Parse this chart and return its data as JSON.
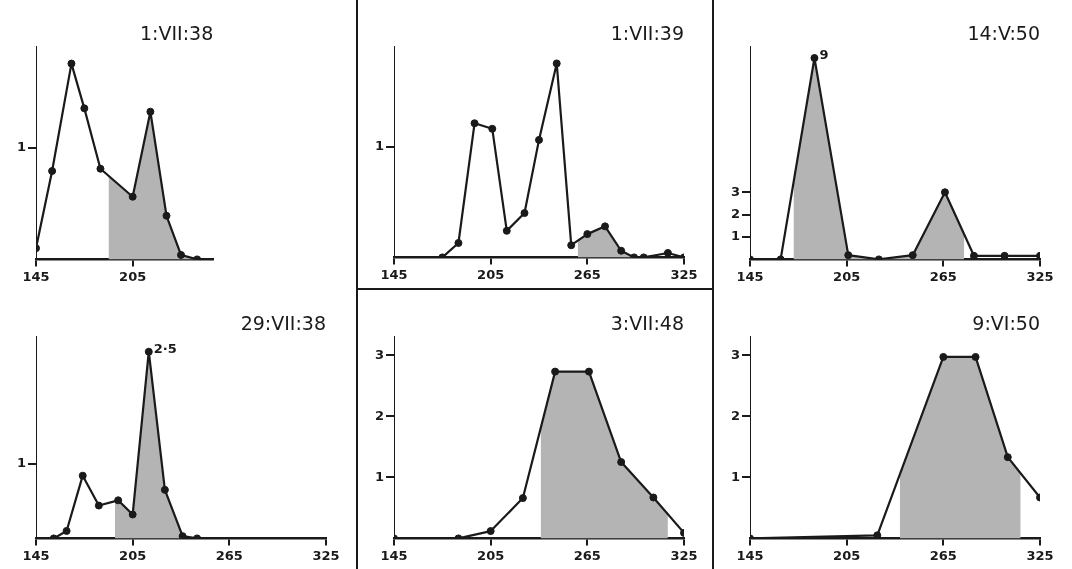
{
  "chart_data": [
    {
      "type": "line",
      "title": "1:VII:38",
      "xlim": [
        145,
        255
      ],
      "xticks": [
        145,
        205
      ],
      "ylim": [
        0,
        1.9
      ],
      "yticks": [
        1
      ],
      "series": [
        {
          "type": "area",
          "color": "#b4b4b4",
          "x": [
            190,
            205,
            216,
            226,
            235,
            245
          ],
          "values": [
            0.75,
            0.56,
            1.32,
            0.39,
            0.04,
            0
          ]
        },
        {
          "type": "line",
          "color": "#1a1a1a",
          "marker": "circle",
          "x": [
            145,
            155,
            167,
            175,
            185,
            205,
            216,
            226,
            235,
            245
          ],
          "values": [
            0.1,
            0.79,
            1.75,
            1.35,
            0.81,
            0.56,
            1.32,
            0.39,
            0.04,
            0
          ]
        }
      ]
    },
    {
      "type": "line",
      "title": "1:VII:39",
      "xlim": [
        145,
        325
      ],
      "xticks": [
        145,
        205,
        265,
        325
      ],
      "ylim": [
        0,
        1.9
      ],
      "yticks": [
        1
      ],
      "series": [
        {
          "type": "area",
          "color": "#b4b4b4",
          "x": [
            259,
            265,
            276,
            286,
            294
          ],
          "values": [
            0.15,
            0.21,
            0.28,
            0.06,
            0
          ]
        },
        {
          "type": "line",
          "color": "#1a1a1a",
          "marker": "circle",
          "x": [
            175,
            185,
            195,
            206,
            215,
            226,
            235,
            246,
            255,
            265,
            276,
            286,
            294,
            300,
            315,
            325
          ],
          "values": [
            0,
            0.13,
            1.21,
            1.16,
            0.24,
            0.4,
            1.06,
            1.75,
            0.11,
            0.21,
            0.28,
            0.06,
            0,
            0,
            0.04,
            0
          ]
        }
      ]
    },
    {
      "type": "line",
      "title": "14:V:50",
      "xlim": [
        145,
        325
      ],
      "xticks": [
        145,
        205,
        265,
        325
      ],
      "ylim": [
        0,
        9.5
      ],
      "yticks": [
        1,
        2,
        3
      ],
      "series": [
        {
          "type": "area",
          "color": "#b4b4b4",
          "x": [
            172,
            185,
            206,
            225,
            246,
            266,
            278
          ],
          "values": [
            3.35,
            9,
            0.19,
            0,
            0.19,
            3.0,
            1.14
          ]
        },
        {
          "type": "line",
          "color": "#1a1a1a",
          "marker": "circle",
          "x": [
            145,
            164,
            185,
            206,
            225,
            246,
            266,
            284,
            303,
            325
          ],
          "values": [
            0,
            0,
            9,
            0.19,
            0,
            0.19,
            3.0,
            0.16,
            0.16,
            0.16
          ],
          "value_labels": [
            null,
            null,
            "9",
            null,
            null,
            null,
            null,
            null,
            null,
            null
          ]
        }
      ]
    },
    {
      "type": "line",
      "title": "29:VII:38",
      "xlim": [
        145,
        325
      ],
      "xticks": [
        145,
        205,
        265,
        325
      ],
      "ylim": [
        0,
        2.7
      ],
      "yticks": [
        1
      ],
      "series": [
        {
          "type": "area",
          "color": "#b4b4b4",
          "x": [
            194,
            196,
            205,
            215,
            225,
            236
          ],
          "values": [
            0.5,
            0.51,
            0.32,
            2.5,
            0.65,
            0.03
          ]
        },
        {
          "type": "line",
          "color": "#1a1a1a",
          "marker": "circle",
          "x": [
            156,
            164,
            174,
            184,
            196,
            205,
            215,
            225,
            236,
            245
          ],
          "values": [
            0,
            0.1,
            0.84,
            0.44,
            0.51,
            0.32,
            2.5,
            0.65,
            0.03,
            0
          ],
          "value_labels": [
            null,
            null,
            null,
            null,
            null,
            null,
            "2·5",
            null,
            null,
            null
          ]
        }
      ]
    },
    {
      "type": "line",
      "title": "3:VII:48",
      "xlim": [
        145,
        325
      ],
      "xticks": [
        145,
        205,
        265,
        325
      ],
      "ylim": [
        0,
        3.3
      ],
      "yticks": [
        1,
        2,
        3
      ],
      "series": [
        {
          "type": "area",
          "color": "#b4b4b4",
          "x": [
            236,
            245,
            266,
            286,
            306,
            315
          ],
          "values": [
            1.82,
            2.73,
            2.73,
            1.25,
            0.67,
            0.4
          ]
        },
        {
          "type": "line",
          "color": "#1a1a1a",
          "marker": "circle",
          "x": [
            145,
            185,
            205,
            225,
            245,
            266,
            286,
            306,
            325
          ],
          "values": [
            0,
            0,
            0.12,
            0.66,
            2.73,
            2.73,
            1.25,
            0.67,
            0.09
          ]
        }
      ]
    },
    {
      "type": "line",
      "title": "9:VI:50",
      "xlim": [
        145,
        325
      ],
      "xticks": [
        145,
        205,
        265,
        325
      ],
      "ylim": [
        0,
        3.3
      ],
      "yticks": [
        1,
        2,
        3
      ],
      "series": [
        {
          "type": "area",
          "color": "#b4b4b4",
          "x": [
            238,
            265,
            285,
            305,
            313
          ],
          "values": [
            1.05,
            2.97,
            2.97,
            1.33,
            1.05
          ]
        },
        {
          "type": "line",
          "color": "#1a1a1a",
          "marker": "circle",
          "x": [
            145,
            224,
            265,
            285,
            305,
            325
          ],
          "values": [
            0,
            0.05,
            2.97,
            2.97,
            1.33,
            0.67
          ]
        }
      ]
    }
  ]
}
